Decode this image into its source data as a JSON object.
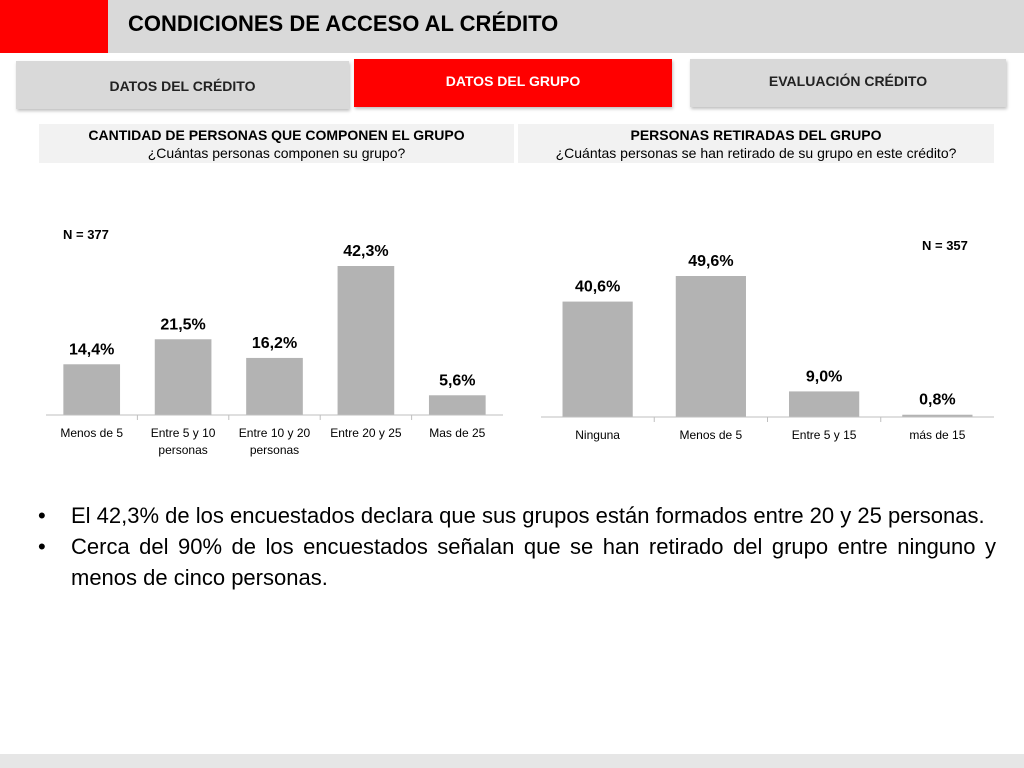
{
  "header": {
    "title": "CONDICIONES DE ACCESO AL CRÉDITO"
  },
  "colors": {
    "accent": "#ff0000",
    "bar": "#b3b3b3",
    "tab": "#d9d9d9"
  },
  "tabs": [
    {
      "label": "DATOS DEL CRÉDITO",
      "active": false
    },
    {
      "label": "DATOS DEL GRUPO",
      "active": true
    },
    {
      "label": "EVALUACIÓN CRÉDITO",
      "active": false
    }
  ],
  "panels": [
    {
      "title": "CANTIDAD DE PERSONAS QUE COMPONEN EL GRUPO",
      "subtitle": "¿Cuántas personas componen su grupo?"
    },
    {
      "title": "PERSONAS RETIRADAS DEL GRUPO",
      "subtitle": "¿Cuántas personas se han retirado de su grupo en este crédito?"
    }
  ],
  "chart_data": [
    {
      "type": "bar",
      "n_label": "N = 377",
      "categories": [
        [
          "Menos de 5"
        ],
        [
          "Entre 5 y 10",
          "personas"
        ],
        [
          "Entre 10 y 20",
          "personas"
        ],
        [
          "Entre 20 y 25"
        ],
        [
          "Mas de 25"
        ]
      ],
      "values": [
        14.4,
        21.5,
        16.2,
        42.3,
        5.6
      ],
      "value_labels": [
        "14,4%",
        "21,5%",
        "16,2%",
        "42,3%",
        "5,6%"
      ],
      "ylim": [
        0,
        42.3
      ],
      "grid": false
    },
    {
      "type": "bar",
      "n_label": "N = 357",
      "categories": [
        [
          "Ninguna"
        ],
        [
          "Menos de 5"
        ],
        [
          "Entre 5 y 15"
        ],
        [
          "más de 15"
        ]
      ],
      "values": [
        40.6,
        49.6,
        9.0,
        0.8
      ],
      "value_labels": [
        "40,6%",
        "49,6%",
        "9,0%",
        "0,8%"
      ],
      "ylim": [
        0,
        49.6
      ],
      "grid": false
    }
  ],
  "bullets": [
    "El 42,3% de los encuestados declara que sus grupos están formados entre 20 y 25 personas.",
    "Cerca del 90% de los encuestados señalan que se han retirado del grupo entre ninguno y menos de cinco personas."
  ],
  "bullet_char": "•"
}
